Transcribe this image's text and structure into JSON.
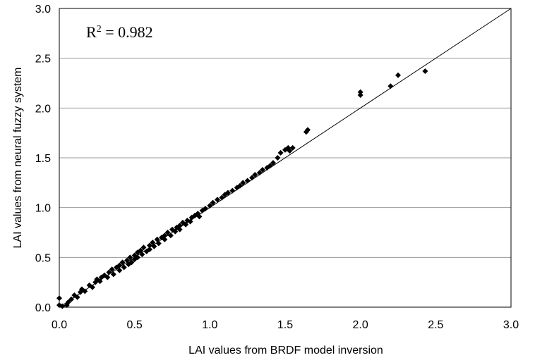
{
  "chart_data": {
    "type": "scatter",
    "xlabel": "LAI values from BRDF model inversion",
    "ylabel": "LAI values from neural fuzzy system",
    "xlim": [
      0,
      3
    ],
    "ylim": [
      0,
      3
    ],
    "xticks": [
      "0.0",
      "0.5",
      "1.0",
      "1.5",
      "2.0",
      "2.5",
      "3.0"
    ],
    "yticks": [
      "0.0",
      "0.5",
      "1.0",
      "1.5",
      "2.0",
      "2.5",
      "3.0"
    ],
    "grid": "horizontal",
    "reference_line": {
      "from": [
        0,
        0
      ],
      "to": [
        3,
        3
      ]
    },
    "annotation": {
      "prefix": "R",
      "sup": "2",
      "suffix": " = 0.982"
    },
    "marker_color": "#000000",
    "series": [
      {
        "marker": "diamond",
        "points": [
          [
            0.0,
            0.09
          ],
          [
            0.0,
            0.02
          ],
          [
            0.02,
            0.01
          ],
          [
            0.05,
            0.02
          ],
          [
            0.06,
            0.05
          ],
          [
            0.08,
            0.08
          ],
          [
            0.1,
            0.12
          ],
          [
            0.12,
            0.1
          ],
          [
            0.14,
            0.15
          ],
          [
            0.15,
            0.18
          ],
          [
            0.17,
            0.16
          ],
          [
            0.2,
            0.22
          ],
          [
            0.22,
            0.2
          ],
          [
            0.24,
            0.25
          ],
          [
            0.25,
            0.28
          ],
          [
            0.27,
            0.26
          ],
          [
            0.28,
            0.3
          ],
          [
            0.3,
            0.32
          ],
          [
            0.32,
            0.3
          ],
          [
            0.33,
            0.35
          ],
          [
            0.35,
            0.38
          ],
          [
            0.36,
            0.33
          ],
          [
            0.38,
            0.4
          ],
          [
            0.4,
            0.42
          ],
          [
            0.4,
            0.37
          ],
          [
            0.42,
            0.45
          ],
          [
            0.43,
            0.4
          ],
          [
            0.45,
            0.47
          ],
          [
            0.46,
            0.43
          ],
          [
            0.47,
            0.5
          ],
          [
            0.48,
            0.45
          ],
          [
            0.5,
            0.52
          ],
          [
            0.5,
            0.48
          ],
          [
            0.52,
            0.55
          ],
          [
            0.52,
            0.5
          ],
          [
            0.54,
            0.57
          ],
          [
            0.55,
            0.53
          ],
          [
            0.56,
            0.6
          ],
          [
            0.58,
            0.56
          ],
          [
            0.6,
            0.62
          ],
          [
            0.6,
            0.58
          ],
          [
            0.62,
            0.65
          ],
          [
            0.63,
            0.61
          ],
          [
            0.65,
            0.68
          ],
          [
            0.66,
            0.64
          ],
          [
            0.68,
            0.7
          ],
          [
            0.7,
            0.72
          ],
          [
            0.7,
            0.68
          ],
          [
            0.72,
            0.75
          ],
          [
            0.74,
            0.72
          ],
          [
            0.75,
            0.78
          ],
          [
            0.77,
            0.76
          ],
          [
            0.78,
            0.8
          ],
          [
            0.8,
            0.82
          ],
          [
            0.8,
            0.78
          ],
          [
            0.82,
            0.85
          ],
          [
            0.84,
            0.83
          ],
          [
            0.85,
            0.87
          ],
          [
            0.87,
            0.86
          ],
          [
            0.88,
            0.9
          ],
          [
            0.9,
            0.92
          ],
          [
            0.92,
            0.94
          ],
          [
            0.93,
            0.91
          ],
          [
            0.95,
            0.97
          ],
          [
            0.97,
            0.99
          ],
          [
            1.0,
            1.02
          ],
          [
            1.02,
            1.05
          ],
          [
            1.05,
            1.08
          ],
          [
            1.08,
            1.1
          ],
          [
            1.1,
            1.13
          ],
          [
            1.12,
            1.15
          ],
          [
            1.15,
            1.17
          ],
          [
            1.18,
            1.2
          ],
          [
            1.2,
            1.22
          ],
          [
            1.22,
            1.25
          ],
          [
            1.25,
            1.27
          ],
          [
            1.28,
            1.3
          ],
          [
            1.3,
            1.33
          ],
          [
            1.33,
            1.35
          ],
          [
            1.35,
            1.38
          ],
          [
            1.38,
            1.4
          ],
          [
            1.4,
            1.42
          ],
          [
            1.42,
            1.45
          ],
          [
            1.45,
            1.5
          ],
          [
            1.47,
            1.55
          ],
          [
            1.5,
            1.58
          ],
          [
            1.52,
            1.6
          ],
          [
            1.55,
            1.6
          ],
          [
            1.53,
            1.57
          ],
          [
            1.65,
            1.78
          ],
          [
            1.64,
            1.76
          ],
          [
            2.0,
            2.16
          ],
          [
            2.0,
            2.13
          ],
          [
            2.2,
            2.22
          ],
          [
            2.25,
            2.33
          ],
          [
            2.43,
            2.37
          ]
        ]
      }
    ]
  }
}
